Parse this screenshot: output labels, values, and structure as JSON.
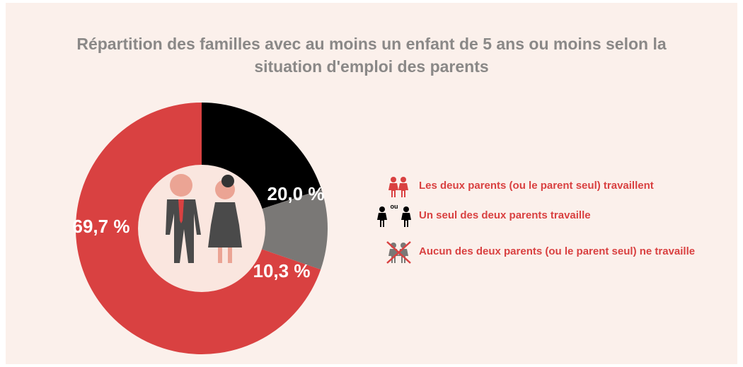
{
  "chart_data": {
    "type": "donut",
    "title": "Répartition des familles avec au moins un enfant de 5 ans ou moins selon la situation d'emploi des parents",
    "categories": [
      "Les deux parents (ou le parent seul) travaillent",
      "Un seul des deux parents travaille",
      "Aucun des deux parents (ou le parent seul) ne travaille"
    ],
    "values": [
      69.7,
      20.0,
      10.3
    ],
    "value_labels": [
      "69,7 %",
      "20,0 %",
      "10,3 %"
    ],
    "colors": [
      "#d94141",
      "#000000",
      "#7a7876"
    ],
    "legend_text": "ou"
  }
}
